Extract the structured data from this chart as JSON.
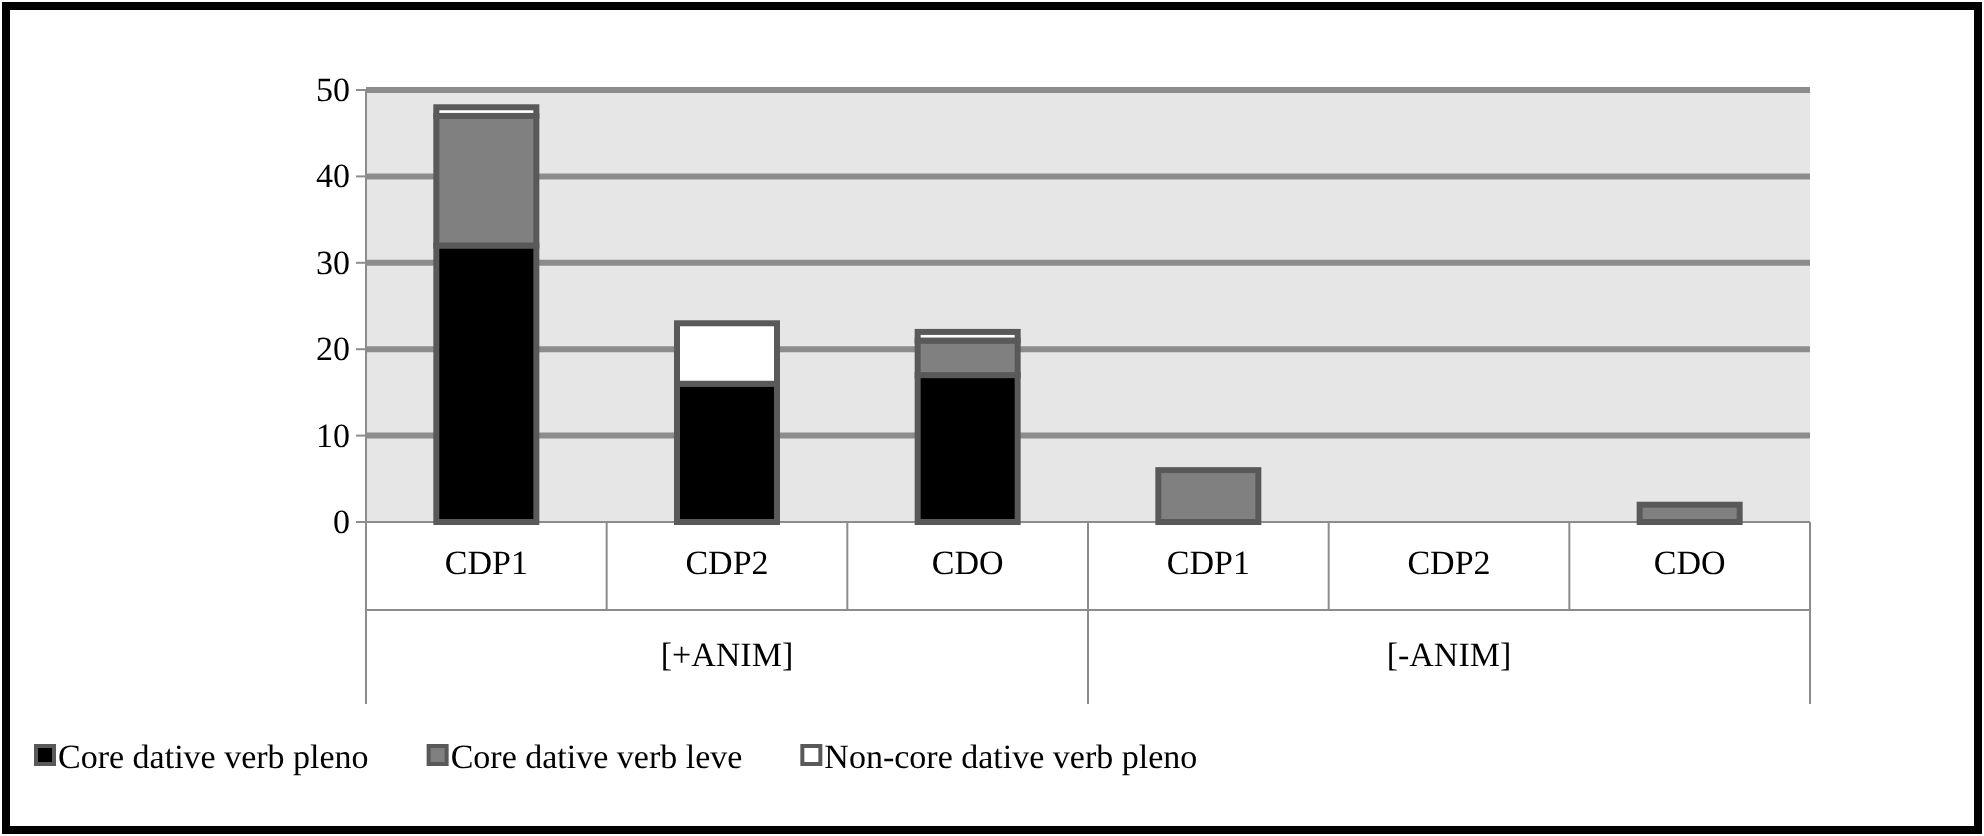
{
  "chart_data": {
    "type": "bar",
    "stacked": true,
    "categories": [
      "CDP1",
      "CDP2",
      "CDO",
      "CDP1",
      "CDP2",
      "CDO"
    ],
    "series": [
      {
        "name": "Core dative verb pleno",
        "color": "#000000",
        "values": [
          32,
          16,
          17,
          0,
          0,
          0
        ]
      },
      {
        "name": "Core dative verb leve",
        "color": "#808080",
        "values": [
          15,
          0,
          4,
          6,
          0,
          2
        ]
      },
      {
        "name": "Non-core dative verb pleno",
        "color": "#ffffff",
        "values": [
          1,
          7,
          1,
          0,
          0,
          0
        ]
      }
    ],
    "annotations": [
      "[+ANIM]",
      "[-ANIM]"
    ],
    "ylim": [
      0,
      50
    ],
    "yticks": [
      0,
      10,
      20,
      30,
      40,
      50
    ],
    "grid": "y",
    "legend": "bottom"
  }
}
